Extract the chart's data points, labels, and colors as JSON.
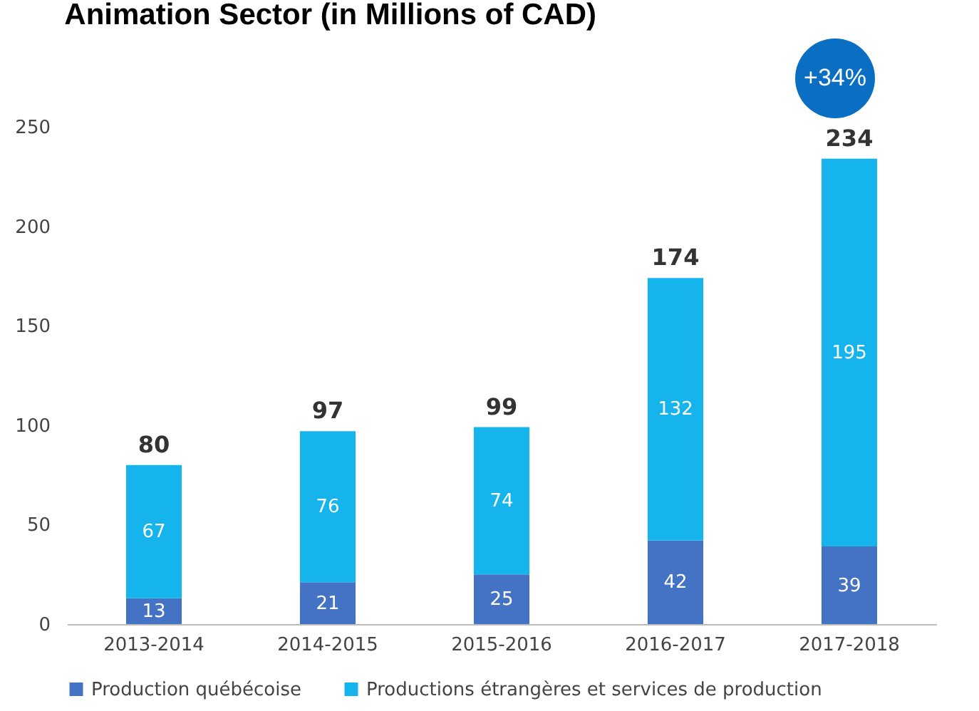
{
  "chart_data": {
    "type": "bar",
    "title": "Animation Sector (in Millions of CAD)",
    "stacked": true,
    "categories": [
      "2013-2014",
      "2014-2015",
      "2015-2016",
      "2016-2017",
      "2017-2018"
    ],
    "series": [
      {
        "name": "Production québécoise",
        "color": "#4472c4",
        "values": [
          13,
          21,
          25,
          42,
          39
        ]
      },
      {
        "name": "Productions étrangères et services de production",
        "color": "#16b4ec",
        "values": [
          67,
          76,
          74,
          132,
          195
        ]
      }
    ],
    "totals": [
      "80",
      "97",
      "99",
      "174",
      "234"
    ],
    "data_labels": true,
    "ylim": [
      0,
      250
    ],
    "yticks": [
      0,
      50,
      100,
      150,
      200,
      250
    ],
    "grid": false,
    "legend": "bottom",
    "annotations": [
      "+34%"
    ]
  }
}
